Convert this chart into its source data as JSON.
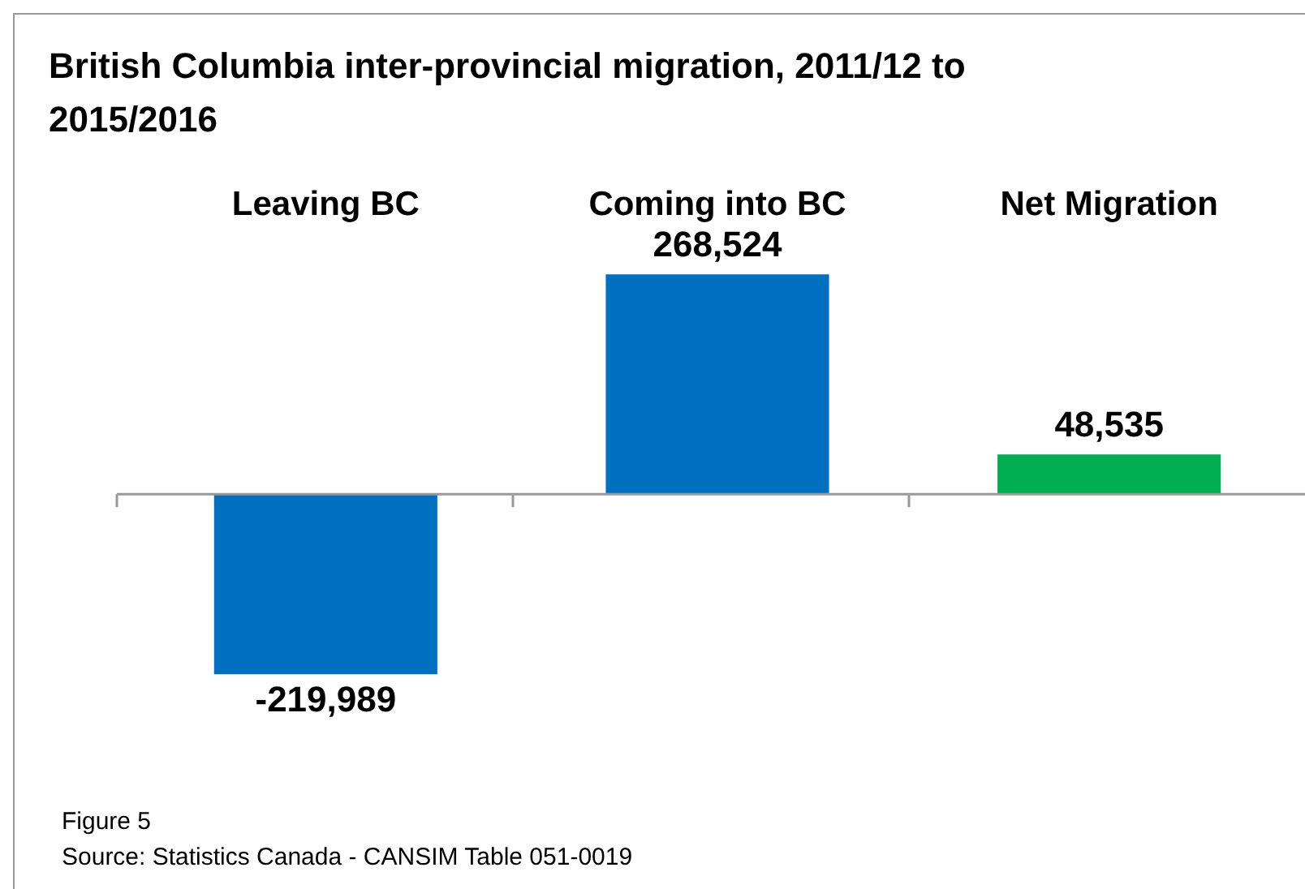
{
  "chart_data": {
    "type": "bar",
    "title": "British Columbia inter-provincial  migration, 2011/12 to 2015/2016",
    "categories": [
      "Leaving BC",
      "Coming into BC",
      "Net Migration"
    ],
    "values": [
      -219989,
      268524,
      48535
    ],
    "colors": [
      "#0070c0",
      "#0070c0",
      "#00b050"
    ],
    "value_labels": [
      "-219,989",
      "268,524",
      "48,535"
    ],
    "relative": false,
    "grid": false,
    "legend": false,
    "annotations": [
      "Figure 5",
      "Source: Statistics Canada - CANSIM Table 051-0019"
    ]
  }
}
